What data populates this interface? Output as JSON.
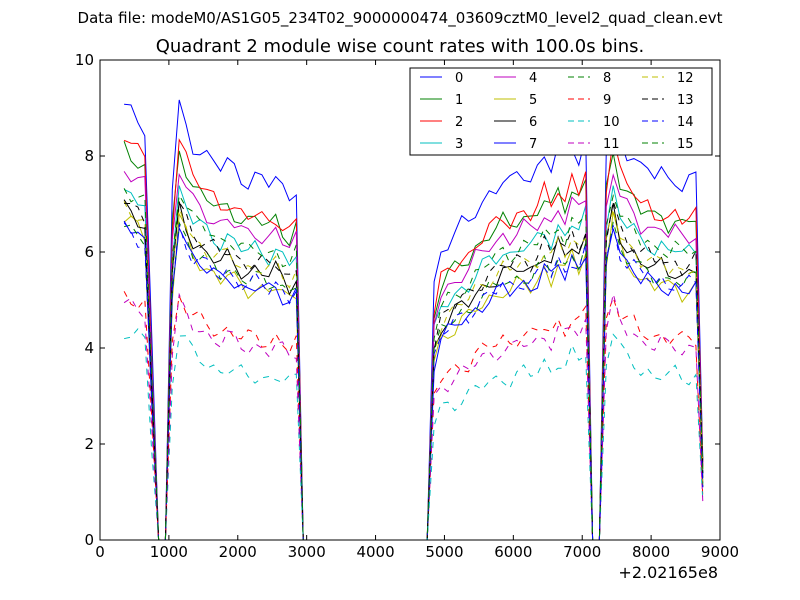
{
  "figure": {
    "suptitle": "Data file: modeM0/AS1G05_234T02_9000000474_03609cztM0_level2_quad_clean.evt",
    "title": "Quadrant 2 module wise count rates with 100.0s bins.",
    "x_offset_label": "+2.02165e8"
  },
  "chart_data": {
    "type": "line",
    "title": "Quadrant 2 module wise count rates with 100.0s bins.",
    "xlabel": "",
    "ylabel": "",
    "x_offset": "+2.02165e8",
    "xlim": [
      0,
      9000
    ],
    "ylim": [
      0,
      10
    ],
    "xticks": [
      0,
      1000,
      2000,
      3000,
      4000,
      5000,
      6000,
      7000,
      8000,
      9000
    ],
    "yticks": [
      0,
      2,
      4,
      6,
      8,
      10
    ],
    "grid": false,
    "legend": {
      "placement": "top-right",
      "columns": 4
    },
    "series": [
      {
        "name": "0",
        "color": "#0000ff",
        "dash": "solid",
        "base": 8.6,
        "peak": 9.1
      },
      {
        "name": "1",
        "color": "#008000",
        "dash": "solid",
        "base": 7.6,
        "peak": 8.3
      },
      {
        "name": "2",
        "color": "#ff0000",
        "dash": "solid",
        "base": 7.7,
        "peak": 8.7
      },
      {
        "name": "3",
        "color": "#00bfbf",
        "dash": "solid",
        "base": 6.9,
        "peak": 7.4
      },
      {
        "name": "4",
        "color": "#bf00bf",
        "dash": "solid",
        "base": 7.3,
        "peak": 7.8
      },
      {
        "name": "5",
        "color": "#bfbf00",
        "dash": "solid",
        "base": 6.0,
        "peak": 6.9
      },
      {
        "name": "6",
        "color": "#000000",
        "dash": "solid",
        "base": 6.4,
        "peak": 7.0
      },
      {
        "name": "7",
        "color": "#0000ff",
        "dash": "solid",
        "base": 6.0,
        "peak": 6.8
      },
      {
        "name": "8",
        "color": "#008000",
        "dash": "dashed",
        "base": 6.2,
        "peak": 6.7
      },
      {
        "name": "9",
        "color": "#ff0000",
        "dash": "dashed",
        "base": 4.8,
        "peak": 5.2
      },
      {
        "name": "10",
        "color": "#00bfbf",
        "dash": "dashed",
        "base": 3.9,
        "peak": 4.5
      },
      {
        "name": "11",
        "color": "#bf00bf",
        "dash": "dashed",
        "base": 4.6,
        "peak": 5.0
      },
      {
        "name": "12",
        "color": "#bfbf00",
        "dash": "dashed",
        "base": 6.5,
        "peak": 7.0
      },
      {
        "name": "13",
        "color": "#000000",
        "dash": "dashed",
        "base": 6.6,
        "peak": 7.2
      },
      {
        "name": "14",
        "color": "#0000ff",
        "dash": "dashed",
        "base": 6.1,
        "peak": 6.6
      },
      {
        "name": "15",
        "color": "#008000",
        "dash": "dashed",
        "base": 6.9,
        "peak": 7.5
      }
    ],
    "x": [
      350,
      450,
      550,
      650,
      750,
      850,
      950,
      1050,
      1150,
      1250,
      1350,
      1450,
      1550,
      1650,
      1750,
      1850,
      1950,
      2050,
      2150,
      2250,
      2350,
      2450,
      2550,
      2650,
      2750,
      2850,
      2950,
      3050,
      3150,
      3250,
      3350,
      3450,
      3550,
      3650,
      3750,
      3850,
      3950,
      4050,
      4150,
      4250,
      4350,
      4450,
      4550,
      4650,
      4750,
      4850,
      4950,
      5050,
      5150,
      5250,
      5350,
      5450,
      5550,
      5650,
      5750,
      5850,
      5950,
      6050,
      6150,
      6250,
      6350,
      6450,
      6550,
      6650,
      6750,
      6850,
      6950,
      7050,
      7150,
      7250,
      7350,
      7450,
      7550,
      7650,
      7750,
      7850,
      7950,
      8050,
      8150,
      8250,
      8350,
      8450,
      8550,
      8650,
      8750
    ],
    "profile": [
      1.0,
      0.99,
      0.98,
      0.97,
      0.5,
      0,
      0,
      0.85,
      1.0,
      0.97,
      0.94,
      0.93,
      0.92,
      0.91,
      0.9,
      0.91,
      0.9,
      0.88,
      0.87,
      0.88,
      0.87,
      0.86,
      0.88,
      0.85,
      0.83,
      0.86,
      0,
      0,
      0,
      0,
      0,
      0,
      0,
      0,
      0,
      0,
      0,
      0,
      0,
      0,
      0,
      0,
      0,
      0,
      0,
      0.62,
      0.7,
      0.72,
      0.74,
      0.76,
      0.77,
      0.8,
      0.82,
      0.84,
      0.85,
      0.87,
      0.86,
      0.88,
      0.89,
      0.88,
      0.9,
      0.92,
      0.9,
      0.93,
      0.91,
      0.94,
      0.92,
      0.95,
      0,
      0,
      0.93,
      1.0,
      0.95,
      0.93,
      0.92,
      0.9,
      0.9,
      0.88,
      0.89,
      0.87,
      0.88,
      0.86,
      0.87,
      0.88,
      0.2
    ]
  }
}
